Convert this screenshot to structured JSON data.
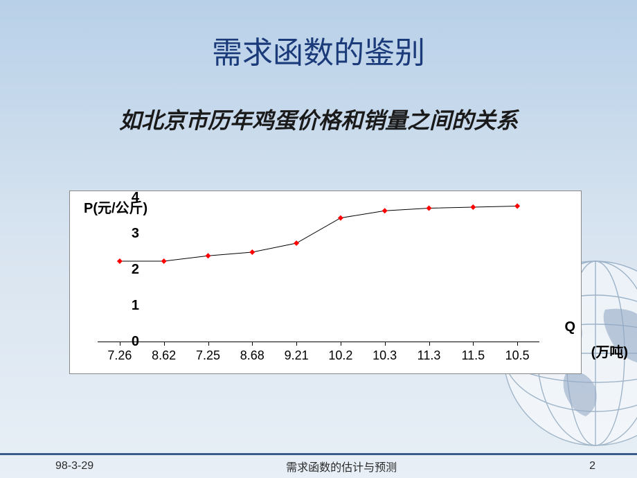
{
  "slide": {
    "title": "需求函数的鉴别",
    "subtitle": "如北京市历年鸡蛋价格和销量之间的关系",
    "background_gradient": [
      "#b8d0e8",
      "#e8eff6"
    ]
  },
  "chart": {
    "type": "line",
    "y_label": "P(元/公斤)",
    "x_label": "Q",
    "x_unit": "(万吨)",
    "background_color": "#ffffff",
    "border_color": "#888888",
    "line_color": "#000000",
    "line_width": 1,
    "marker_color": "#ff0000",
    "marker_size": 4,
    "ylim": [
      0,
      4
    ],
    "yticks": [
      0,
      1,
      2,
      3,
      4
    ],
    "x_categories": [
      "7.26",
      "8.62",
      "7.25",
      "8.68",
      "9.21",
      "10.2",
      "10.3",
      "11.3",
      "11.5",
      "10.5"
    ],
    "values": [
      2.25,
      2.25,
      2.4,
      2.5,
      2.75,
      3.45,
      3.65,
      3.72,
      3.75,
      3.78
    ],
    "label_fontsize": 20,
    "tick_fontsize": 18
  },
  "footer": {
    "date": "98-3-29",
    "title": "需求函数的估计与预测",
    "page": "2",
    "line_color": "#3a5a8a"
  }
}
